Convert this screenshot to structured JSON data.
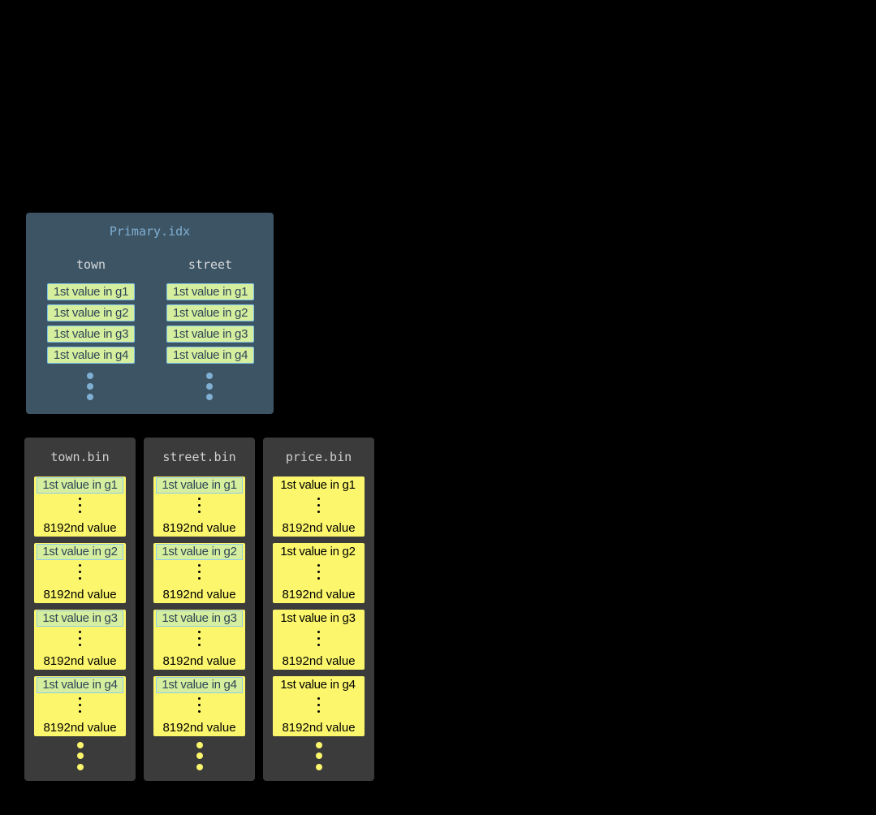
{
  "primary": {
    "title": "Primary.idx",
    "columns": [
      {
        "name": "town",
        "cells": [
          "1st value in g1",
          "1st value in g2",
          "1st value in g3",
          "1st value in g4"
        ]
      },
      {
        "name": "street",
        "cells": [
          "1st value in g1",
          "1st value in g2",
          "1st value in g3",
          "1st value in g4"
        ]
      }
    ]
  },
  "bins": [
    {
      "title": "town.bin",
      "highlighted": true,
      "blocks": [
        {
          "first": "1st value in g1",
          "last": "8192nd value"
        },
        {
          "first": "1st value in g2",
          "last": "8192nd value"
        },
        {
          "first": "1st value in g3",
          "last": "8192nd value"
        },
        {
          "first": "1st value in g4",
          "last": "8192nd value"
        }
      ]
    },
    {
      "title": "street.bin",
      "highlighted": true,
      "blocks": [
        {
          "first": "1st value in g1",
          "last": "8192nd value"
        },
        {
          "first": "1st value in g2",
          "last": "8192nd value"
        },
        {
          "first": "1st value in g3",
          "last": "8192nd value"
        },
        {
          "first": "1st value in g4",
          "last": "8192nd value"
        }
      ]
    },
    {
      "title": "price.bin",
      "highlighted": false,
      "blocks": [
        {
          "first": "1st value in g1",
          "last": "8192nd value"
        },
        {
          "first": "1st value in g2",
          "last": "8192nd value"
        },
        {
          "first": "1st value in g3",
          "last": "8192nd value"
        },
        {
          "first": "1st value in g4",
          "last": "8192nd value"
        }
      ]
    }
  ],
  "colors": {
    "index_panel": "#3d5464",
    "bin_panel": "#3b3b3b",
    "granule": "#fbf66c",
    "index_cell": "#d6ef9f",
    "index_dots": "#7fb0d4",
    "bin_dots": "#fbf66c"
  }
}
